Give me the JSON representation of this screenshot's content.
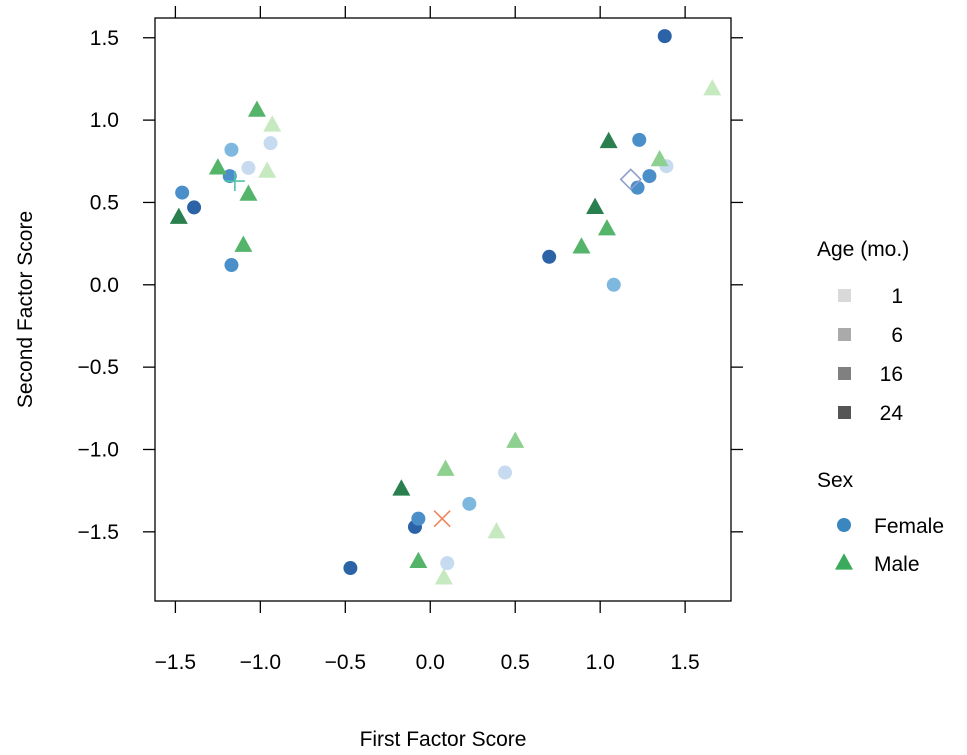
{
  "chart_data": {
    "type": "scatter",
    "xlabel": "First Factor Score",
    "ylabel": "Second Factor Score",
    "xlim": [
      -1.62,
      1.77
    ],
    "ylim": [
      -1.92,
      1.62
    ],
    "xticks": [
      -1.5,
      -1.0,
      -0.5,
      0.0,
      0.5,
      1.0,
      1.5
    ],
    "xtick_labels": [
      "−1.5",
      "−1.0",
      "−0.5",
      "0.0",
      "0.5",
      "1.0",
      "1.5"
    ],
    "yticks": [
      -1.5,
      -1.0,
      -0.5,
      0.0,
      0.5,
      1.0,
      1.5
    ],
    "ytick_labels": [
      "−1.5",
      "−1.0",
      "−0.5",
      "0.0",
      "0.5",
      "1.0",
      "1.5"
    ],
    "grid": false,
    "legend": {
      "placement": "right",
      "age_title": "Age (mo.)",
      "age_levels": [
        {
          "label": "1",
          "color": "#d9d9d9"
        },
        {
          "label": "6",
          "color": "#aaaaaa"
        },
        {
          "label": "16",
          "color": "#808080"
        },
        {
          "label": "24",
          "color": "#555555"
        }
      ],
      "sex_title": "Sex",
      "sex_levels": [
        {
          "label": "Female",
          "shape": "circle",
          "color": "#3a87c0"
        },
        {
          "label": "Male",
          "shape": "triangle",
          "color": "#3aaa5c"
        }
      ]
    },
    "palette": {
      "Female": {
        "1": "#c6dbef",
        "6": "#7fb8df",
        "16": "#4a8fca",
        "24": "#2c63a6"
      },
      "Male": {
        "1": "#c7e9c0",
        "6": "#8ed08f",
        "16": "#54b56a",
        "24": "#2a7f4f"
      }
    },
    "points": [
      {
        "x": -1.46,
        "y": 0.56,
        "sex": "Female",
        "age": "16"
      },
      {
        "x": -1.39,
        "y": 0.47,
        "sex": "Female",
        "age": "24"
      },
      {
        "x": -1.17,
        "y": 0.82,
        "sex": "Female",
        "age": "6"
      },
      {
        "x": -1.18,
        "y": 0.66,
        "sex": "Female",
        "age": "16"
      },
      {
        "x": -1.07,
        "y": 0.71,
        "sex": "Female",
        "age": "1"
      },
      {
        "x": -0.94,
        "y": 0.86,
        "sex": "Female",
        "age": "1"
      },
      {
        "x": -1.17,
        "y": 0.12,
        "sex": "Female",
        "age": "16"
      },
      {
        "x": -1.48,
        "y": 0.41,
        "sex": "Male",
        "age": "24"
      },
      {
        "x": -1.25,
        "y": 0.71,
        "sex": "Male",
        "age": "16"
      },
      {
        "x": -1.02,
        "y": 1.06,
        "sex": "Male",
        "age": "16"
      },
      {
        "x": -0.93,
        "y": 0.97,
        "sex": "Male",
        "age": "1"
      },
      {
        "x": -0.96,
        "y": 0.69,
        "sex": "Male",
        "age": "1"
      },
      {
        "x": -1.07,
        "y": 0.55,
        "sex": "Male",
        "age": "16"
      },
      {
        "x": -1.1,
        "y": 0.24,
        "sex": "Male",
        "age": "16"
      },
      {
        "x": 1.38,
        "y": 1.51,
        "sex": "Female",
        "age": "24"
      },
      {
        "x": 1.23,
        "y": 0.88,
        "sex": "Female",
        "age": "16"
      },
      {
        "x": 1.29,
        "y": 0.66,
        "sex": "Female",
        "age": "16"
      },
      {
        "x": 1.39,
        "y": 0.72,
        "sex": "Female",
        "age": "1"
      },
      {
        "x": 1.22,
        "y": 0.59,
        "sex": "Female",
        "age": "16"
      },
      {
        "x": 0.7,
        "y": 0.17,
        "sex": "Female",
        "age": "24"
      },
      {
        "x": 1.08,
        "y": 0.0,
        "sex": "Female",
        "age": "6"
      },
      {
        "x": 1.66,
        "y": 1.19,
        "sex": "Male",
        "age": "1"
      },
      {
        "x": 1.05,
        "y": 0.87,
        "sex": "Male",
        "age": "24"
      },
      {
        "x": 1.35,
        "y": 0.76,
        "sex": "Male",
        "age": "6"
      },
      {
        "x": 0.97,
        "y": 0.47,
        "sex": "Male",
        "age": "24"
      },
      {
        "x": 1.04,
        "y": 0.34,
        "sex": "Male",
        "age": "16"
      },
      {
        "x": 0.89,
        "y": 0.23,
        "sex": "Male",
        "age": "16"
      },
      {
        "x": -0.47,
        "y": -1.72,
        "sex": "Female",
        "age": "24"
      },
      {
        "x": -0.09,
        "y": -1.47,
        "sex": "Female",
        "age": "24"
      },
      {
        "x": -0.07,
        "y": -1.42,
        "sex": "Female",
        "age": "16"
      },
      {
        "x": 0.1,
        "y": -1.69,
        "sex": "Female",
        "age": "1"
      },
      {
        "x": 0.23,
        "y": -1.33,
        "sex": "Female",
        "age": "6"
      },
      {
        "x": 0.44,
        "y": -1.14,
        "sex": "Female",
        "age": "1"
      },
      {
        "x": -0.17,
        "y": -1.24,
        "sex": "Male",
        "age": "24"
      },
      {
        "x": 0.09,
        "y": -1.12,
        "sex": "Male",
        "age": "6"
      },
      {
        "x": 0.5,
        "y": -0.95,
        "sex": "Male",
        "age": "6"
      },
      {
        "x": -0.07,
        "y": -1.68,
        "sex": "Male",
        "age": "16"
      },
      {
        "x": 0.08,
        "y": -1.78,
        "sex": "Male",
        "age": "1"
      },
      {
        "x": 0.39,
        "y": -1.5,
        "sex": "Male",
        "age": "1"
      }
    ],
    "centroids": [
      {
        "x": -1.15,
        "y": 0.63,
        "marker": "plus",
        "color": "#4fc4a8"
      },
      {
        "x": 1.18,
        "y": 0.64,
        "marker": "diamond",
        "color": "#8fa0cc"
      },
      {
        "x": 0.07,
        "y": -1.42,
        "marker": "cross",
        "color": "#f0845c"
      }
    ]
  }
}
